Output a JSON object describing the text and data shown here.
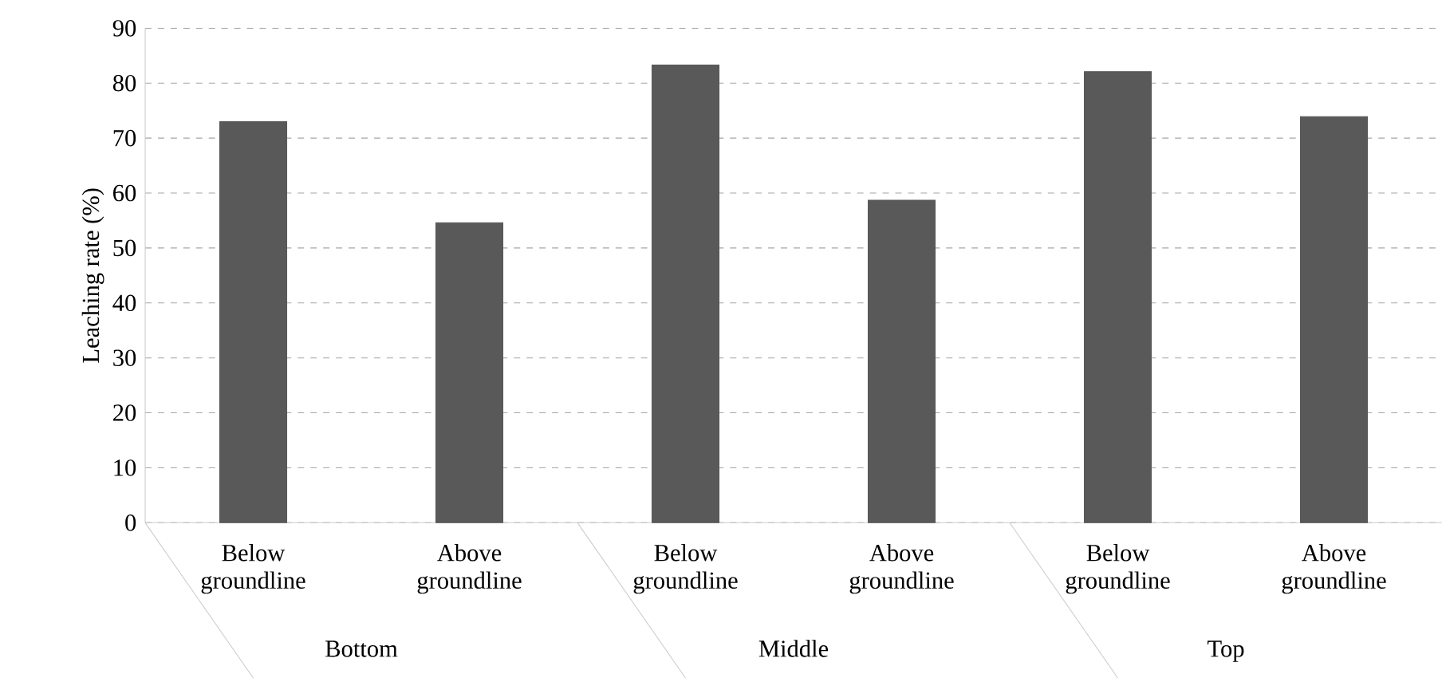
{
  "chart_data": {
    "type": "bar",
    "ylabel": "Leaching rate (%)",
    "categories": [
      "Below groundline",
      "Above groundline",
      "Below groundline",
      "Above groundline",
      "Below groundline",
      "Above groundline"
    ],
    "values": [
      73,
      54.6,
      83.3,
      58.7,
      82.1,
      73.9
    ],
    "color": "#595959",
    "ylim": [
      0,
      90
    ],
    "yticks": [
      0,
      10,
      20,
      30,
      40,
      50,
      60,
      70,
      80,
      90
    ],
    "grid": "y",
    "annotations": [
      "Bottom",
      "Middle",
      "Top"
    ]
  }
}
